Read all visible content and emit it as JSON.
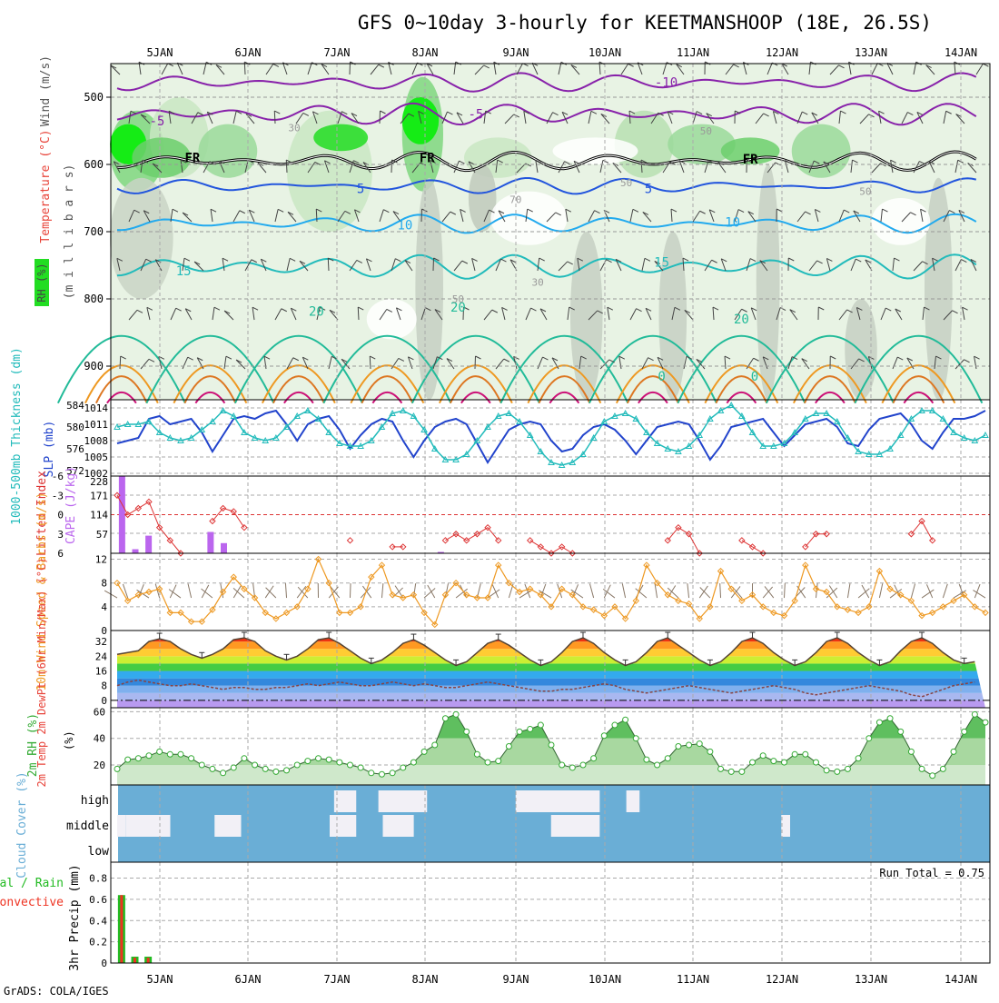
{
  "title": "GFS 0~10day 3-hourly for KEETMANSHOOP (18E, 26.5S)",
  "footer": "GrADS: COLA/IGES",
  "colors": {
    "temp_label": "#e8443a",
    "wind_label": "#555555",
    "rh_green": "#22cc22",
    "slp": "#2244cc",
    "thickness": "#22bbbb",
    "lifted": "#dd3333",
    "cape": "#bb66ee",
    "wind10": "#ee9922",
    "rh2m": "#33aa33",
    "cloud": "#6aaed6",
    "precip_total": "#22bb22",
    "precip_conv": "#ee3322"
  },
  "chart_data": [
    {
      "id": "upper_air",
      "type": "heatmap",
      "ylabel_parts": [
        "Wind (m/s)",
        "Temperature (°C)",
        "(m i l l i b a r s)",
        "RH (%)"
      ],
      "yticks": [
        500,
        600,
        700,
        800,
        900
      ],
      "ylim": [
        450,
        950
      ],
      "x_dates": [
        "5JAN",
        "6JAN",
        "7JAN",
        "8JAN",
        "9JAN",
        "10JAN",
        "11JAN",
        "12JAN",
        "13JAN",
        "14JAN"
      ],
      "grid": true,
      "temperature_contour_labels": [
        {
          "value": "-10",
          "day": 6.2,
          "p": 478
        },
        {
          "value": "-5",
          "day": 0.45,
          "p": 535
        },
        {
          "value": "-5",
          "day": 4.05,
          "p": 525
        },
        {
          "value": "FR",
          "day": 0.85,
          "p": 590
        },
        {
          "value": "FR",
          "day": 3.5,
          "p": 590
        },
        {
          "value": "FR",
          "day": 7.15,
          "p": 592
        },
        {
          "value": "5",
          "day": 2.75,
          "p": 636
        },
        {
          "value": "5",
          "day": 6.0,
          "p": 636
        },
        {
          "value": "10",
          "day": 3.25,
          "p": 690
        },
        {
          "value": "10",
          "day": 6.95,
          "p": 686
        },
        {
          "value": "15",
          "day": 0.75,
          "p": 758
        },
        {
          "value": "15",
          "day": 6.15,
          "p": 745
        },
        {
          "value": "20",
          "day": 2.25,
          "p": 818
        },
        {
          "value": "20",
          "day": 3.85,
          "p": 812
        },
        {
          "value": "20",
          "day": 7.05,
          "p": 830
        },
        {
          "value": "0",
          "day": 6.15,
          "p": 915
        },
        {
          "value": "0",
          "day": 7.2,
          "p": 915
        }
      ],
      "rh_contour_labels": [
        {
          "value": "30",
          "day": 2.0,
          "p": 545
        },
        {
          "value": "50",
          "day": 6.65,
          "p": 550
        },
        {
          "value": "50",
          "day": 5.75,
          "p": 627
        },
        {
          "value": "70",
          "day": 4.5,
          "p": 652
        },
        {
          "value": "50",
          "day": 8.45,
          "p": 640
        },
        {
          "value": "30",
          "day": 4.75,
          "p": 775
        },
        {
          "value": "50",
          "day": 3.85,
          "p": 800
        }
      ]
    },
    {
      "id": "slp_thickness",
      "type": "line",
      "ylabel_left": "1000-500mb Thickness (dm)",
      "ylabel_right": "SLP (mb)",
      "left_ticks": [
        584,
        580,
        576,
        572
      ],
      "right_ticks": [
        1014,
        1011,
        1008,
        1005,
        1002
      ],
      "ylim_left": [
        571,
        585
      ],
      "ylim_right": [
        1001.5,
        1015.5
      ],
      "series": [
        {
          "name": "SLP (mb)",
          "axis": "right",
          "values": [
            1007.5,
            1008,
            1008.5,
            1012,
            1012.5,
            1011,
            1011.5,
            1012,
            1009.5,
            1006,
            1009,
            1012,
            1012.5,
            1012,
            1013,
            1013.5,
            1011,
            1008,
            1011,
            1012,
            1012.5,
            1010,
            1006.5,
            1009,
            1011,
            1012,
            1011.5,
            1008,
            1005,
            1008,
            1010.5,
            1011.5,
            1012,
            1011,
            1007.5,
            1004,
            1007,
            1010,
            1011,
            1011.5,
            1011,
            1008,
            1006,
            1006.5,
            1009,
            1010.5,
            1011,
            1010,
            1008,
            1005.5,
            1008,
            1010.5,
            1011,
            1011.5,
            1011,
            1008,
            1004.5,
            1007,
            1010.5,
            1011,
            1011.5,
            1012,
            1009.5,
            1007,
            1009,
            1011,
            1011.5,
            1012,
            1010.5,
            1007.5,
            1007,
            1010,
            1012,
            1012.5,
            1013,
            1011,
            1008,
            1006.5,
            1009.5,
            1012,
            1012,
            1012.5,
            1013.5
          ]
        },
        {
          "name": "Thickness (dm)",
          "axis": "left",
          "values": [
            580,
            580.5,
            580.5,
            581,
            579,
            578,
            577.5,
            578,
            579.5,
            581,
            583,
            582,
            579,
            578,
            577.5,
            578,
            580,
            582,
            583,
            581.5,
            579,
            577,
            576.5,
            576.5,
            577.5,
            580,
            582.5,
            583,
            582,
            579.5,
            576,
            574,
            574,
            575,
            577.5,
            580,
            582,
            582.5,
            581,
            578.5,
            575.5,
            573.5,
            573,
            573.5,
            575,
            578,
            581,
            582,
            582.5,
            581.5,
            579,
            577,
            576,
            575.5,
            576.5,
            578.5,
            581.5,
            583,
            584,
            582,
            579,
            576.5,
            576.5,
            577,
            579,
            581.5,
            582.5,
            582.5,
            581,
            578,
            575.5,
            575,
            575,
            576,
            578.5,
            581.5,
            583,
            583,
            581.5,
            579,
            578,
            577.5,
            578.5
          ]
        }
      ]
    },
    {
      "id": "li_cape",
      "type": "bar",
      "ylabel_left": "Lifted Index",
      "ylabel_right": "CAPE (J/kg)",
      "left_ticks": [
        "-6",
        "-3",
        "0",
        "3",
        "6"
      ],
      "right_ticks": [
        "228",
        "171",
        "114",
        "57"
      ],
      "ylim_left": [
        -6,
        6
      ],
      "ylim_right": [
        0,
        228
      ],
      "cape_values": [
        {
          "day": 0.05,
          "v": 228
        },
        {
          "day": 0.2,
          "v": 12
        },
        {
          "day": 0.35,
          "v": 52
        },
        {
          "day": 1.05,
          "v": 63
        },
        {
          "day": 1.2,
          "v": 30
        },
        {
          "day": 3.65,
          "v": 4
        }
      ],
      "lifted_index": [
        -3,
        0,
        -1,
        -2,
        2,
        4,
        6,
        null,
        null,
        1,
        -1,
        -0.5,
        2,
        null,
        null,
        null,
        null,
        null,
        null,
        null,
        null,
        null,
        4,
        null,
        null,
        null,
        5,
        5,
        null,
        null,
        null,
        4,
        3,
        4,
        3,
        2,
        4,
        null,
        null,
        4,
        5,
        6,
        5,
        6,
        null,
        null,
        null,
        null,
        null,
        null,
        null,
        null,
        4,
        2,
        3,
        6,
        null,
        null,
        null,
        4,
        5,
        6,
        null,
        null,
        null,
        5,
        3,
        3,
        null,
        null,
        null,
        null,
        null,
        null,
        null,
        3,
        1,
        4,
        null,
        null,
        null,
        null,
        null
      ]
    },
    {
      "id": "wind10m",
      "type": "line",
      "ylabel": "10m Wind Speed & Barbs (m/s)",
      "yticks": [
        12,
        8,
        4,
        0
      ],
      "ylim": [
        0,
        13
      ],
      "series": [
        {
          "name": "10m Wind Speed (m/s)",
          "values": [
            8,
            5,
            6,
            6.5,
            7,
            3,
            3,
            1.5,
            1.5,
            3.5,
            6.5,
            9,
            7,
            5.5,
            3,
            2,
            3,
            4,
            7,
            12,
            8,
            3,
            3,
            4,
            9,
            11,
            6,
            5.5,
            6,
            3,
            1,
            6,
            8,
            6,
            5.5,
            5.5,
            11,
            8,
            6.5,
            7,
            6,
            4,
            7,
            6,
            4,
            3.5,
            2.5,
            4,
            2,
            5,
            11,
            8,
            6,
            5,
            4.5,
            2,
            4,
            10,
            7,
            5,
            6,
            4,
            3,
            2.5,
            5,
            11,
            7,
            6.5,
            4,
            3.5,
            3,
            4,
            10,
            7,
            6,
            5,
            2.5,
            3,
            4,
            5,
            6,
            4,
            3
          ]
        }
      ]
    },
    {
      "id": "temp2m",
      "type": "line",
      "ylabel": "2m Temp 2m DewPt (6hr Min/Max) (°C)",
      "yticks": [
        32,
        24,
        16,
        8,
        0
      ],
      "ylim": [
        -4,
        38
      ],
      "series": [
        {
          "name": "2m Temp (°C)",
          "values": [
            25,
            26,
            27,
            32,
            33.5,
            32,
            28,
            25,
            23,
            25,
            28,
            33,
            34,
            32,
            27,
            24,
            22,
            24,
            28,
            33,
            34,
            31,
            27,
            23,
            20,
            22,
            26,
            31,
            33,
            30,
            26,
            22,
            19,
            21,
            26,
            31,
            33,
            30,
            26,
            22,
            19,
            21,
            26,
            32,
            34,
            31,
            26,
            22,
            19,
            21,
            26,
            32,
            34,
            30,
            26,
            22,
            19,
            21,
            26,
            32,
            34,
            31,
            26,
            22,
            19,
            21,
            26,
            32,
            34,
            31,
            26,
            22,
            19,
            21,
            27,
            32,
            34,
            31,
            26,
            22,
            20,
            21
          ]
        },
        {
          "name": "2m DewPt (°C)",
          "values": [
            8,
            10,
            11,
            10,
            9,
            8,
            8,
            9,
            8,
            7,
            6,
            7,
            7,
            6,
            6,
            7,
            7,
            8,
            9,
            8,
            9,
            10,
            9,
            8,
            8,
            9,
            10,
            9,
            8,
            9,
            8,
            7,
            7,
            8,
            9,
            10,
            9,
            8,
            7,
            6,
            5,
            5,
            6,
            6,
            7,
            8,
            9,
            8,
            6,
            5,
            4,
            5,
            6,
            7,
            8,
            7,
            6,
            5,
            4,
            5,
            6,
            7,
            8,
            7,
            6,
            4,
            3,
            4,
            5,
            6,
            7,
            8,
            7,
            6,
            5,
            3,
            2,
            4,
            6,
            8,
            9,
            10
          ]
        }
      ]
    },
    {
      "id": "rh2m",
      "type": "area",
      "ylabel": "2m RH (%)",
      "yticks": [
        60,
        40,
        20
      ],
      "ylim": [
        5,
        63
      ],
      "series": [
        {
          "name": "2m RH (%)",
          "values": [
            17,
            24,
            25,
            27,
            30,
            28,
            28,
            25,
            20,
            17,
            14,
            18,
            25,
            20,
            17,
            15,
            16,
            20,
            23,
            25,
            24,
            22,
            20,
            18,
            14,
            13,
            14,
            18,
            22,
            30,
            35,
            55,
            58,
            45,
            28,
            22,
            23,
            34,
            45,
            47,
            50,
            35,
            20,
            18,
            20,
            25,
            42,
            50,
            54,
            40,
            24,
            20,
            25,
            34,
            35,
            36,
            30,
            17,
            15,
            15,
            22,
            27,
            23,
            22,
            28,
            28,
            22,
            16,
            15,
            17,
            25,
            40,
            52,
            55,
            45,
            30,
            17,
            12,
            17,
            30,
            45,
            58,
            52
          ]
        }
      ]
    },
    {
      "id": "cloud_cover",
      "type": "heatmap",
      "ylabel": "Cloud Cover (%)",
      "levels": [
        "high",
        "middle",
        "low"
      ]
    },
    {
      "id": "precip",
      "type": "bar",
      "ylabel": "3hr Precip (mm)",
      "side_labels": [
        "Total / Rain",
        "Convective"
      ],
      "yticks": [
        "0.8",
        "0.6",
        "0.4",
        "0.2",
        "0"
      ],
      "ylim": [
        0,
        0.95
      ],
      "run_total": "Run Total = 0.75",
      "bars": [
        {
          "day": 0.05,
          "total": 0.64,
          "conv": 0.64
        },
        {
          "day": 0.2,
          "total": 0.06,
          "conv": 0.05
        },
        {
          "day": 0.35,
          "total": 0.06,
          "conv": 0.05
        }
      ]
    }
  ]
}
